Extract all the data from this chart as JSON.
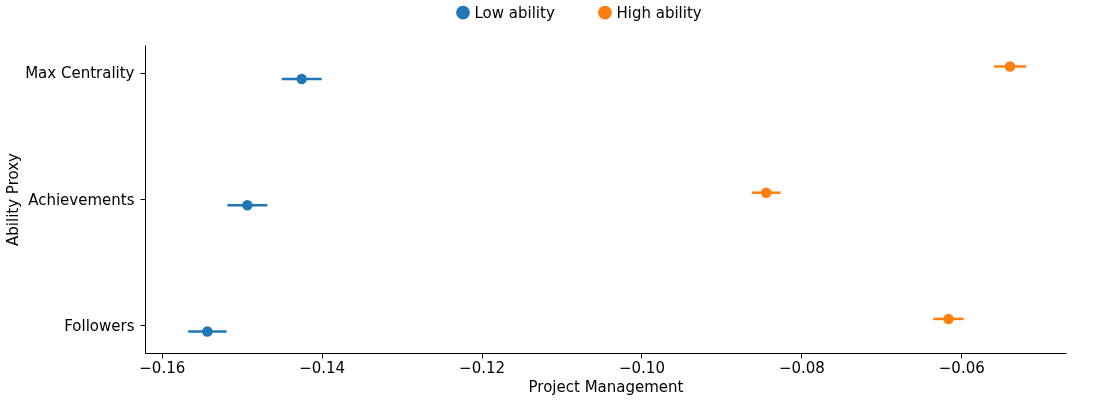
{
  "chart_data": {
    "type": "scatter",
    "orientation": "horizontal",
    "xlabel": "Project Management",
    "ylabel": "Ability Proxy",
    "categories": [
      "Max Centrality",
      "Achievements",
      "Followers"
    ],
    "series": [
      {
        "name": "Low ability",
        "color": "#1f77b4",
        "values": [
          -0.1425,
          -0.1493,
          -0.1543
        ],
        "errors": [
          0.0025,
          0.0025,
          0.0024
        ]
      },
      {
        "name": "High ability",
        "color": "#ff7f0e",
        "values": [
          -0.0539,
          -0.0844,
          -0.0616
        ],
        "errors": [
          0.002,
          0.0018,
          0.0019
        ]
      }
    ],
    "xlim": [
      -0.1621,
      -0.0469
    ],
    "xticks": [
      -0.16,
      -0.14,
      -0.12,
      {
        "value": -0.1,
        "label": "−0.10"
      },
      -0.08,
      -0.06
    ],
    "legend": "top",
    "grid": false,
    "marker": "circle"
  }
}
